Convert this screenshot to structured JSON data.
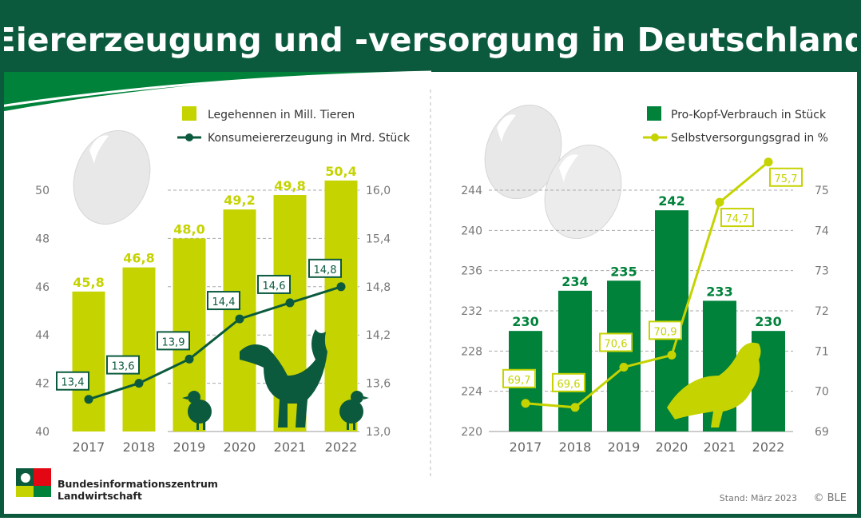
{
  "title": "Eiererzeugung und -versorgung in Deutschland",
  "colors": {
    "lime": "#c5d300",
    "dark_green": "#0b5a3d",
    "green": "#00823a",
    "frame": "#0b5a3d"
  },
  "footer": {
    "org_line1": "Bundesinformationszentrum",
    "org_line2": "Landwirtschaft",
    "stand": "Stand: März 2023",
    "copyright": "© BLE"
  },
  "chart_data": [
    {
      "type": "bar+line",
      "categories": [
        "2017",
        "2018",
        "2019",
        "2020",
        "2021",
        "2022"
      ],
      "series": [
        {
          "name": "Legehennen in Mill. Tieren",
          "type": "bar",
          "axis": "left",
          "values": [
            45.8,
            46.8,
            48.0,
            49.2,
            49.8,
            50.4
          ],
          "labels": [
            "45,8",
            "46,8",
            "48,0",
            "49,2",
            "49,8",
            "50,4"
          ]
        },
        {
          "name": "Konsumeiererzeugung in Mrd. Stück",
          "type": "line",
          "axis": "right",
          "values": [
            13.4,
            13.6,
            13.9,
            14.4,
            14.6,
            14.8
          ],
          "labels": [
            "13,4",
            "13,6",
            "13,9",
            "14,4",
            "14,6",
            "14,8"
          ]
        }
      ],
      "left_axis": {
        "range": [
          40,
          50
        ],
        "ticks": [
          "40",
          "42",
          "44",
          "46",
          "48",
          "50"
        ]
      },
      "right_axis": {
        "range": [
          13.0,
          16.0
        ],
        "ticks": [
          "13,0",
          "13,6",
          "14,2",
          "14,8",
          "15,4",
          "16,0"
        ]
      },
      "grid": true,
      "legend": "top-right"
    },
    {
      "type": "bar+line",
      "categories": [
        "2017",
        "2018",
        "2019",
        "2020",
        "2021",
        "2022"
      ],
      "series": [
        {
          "name": "Pro-Kopf-Verbrauch in Stück",
          "type": "bar",
          "axis": "left",
          "values": [
            230,
            234,
            235,
            242,
            233,
            230
          ],
          "labels": [
            "230",
            "234",
            "235",
            "242",
            "233",
            "230"
          ]
        },
        {
          "name": "Selbstversorgungsgrad in %",
          "type": "line",
          "axis": "right",
          "values": [
            69.7,
            69.6,
            70.6,
            70.9,
            74.7,
            75.7
          ],
          "labels": [
            "69,7",
            "69,6",
            "70,6",
            "70,9",
            "74,7",
            "75,7"
          ]
        }
      ],
      "left_axis": {
        "range": [
          220,
          244
        ],
        "ticks": [
          "220",
          "224",
          "228",
          "232",
          "236",
          "240",
          "244"
        ]
      },
      "right_axis": {
        "range": [
          69,
          75
        ],
        "ticks": [
          "69",
          "70",
          "71",
          "72",
          "73",
          "74",
          "75"
        ]
      },
      "grid": true,
      "legend": "top-right"
    }
  ]
}
